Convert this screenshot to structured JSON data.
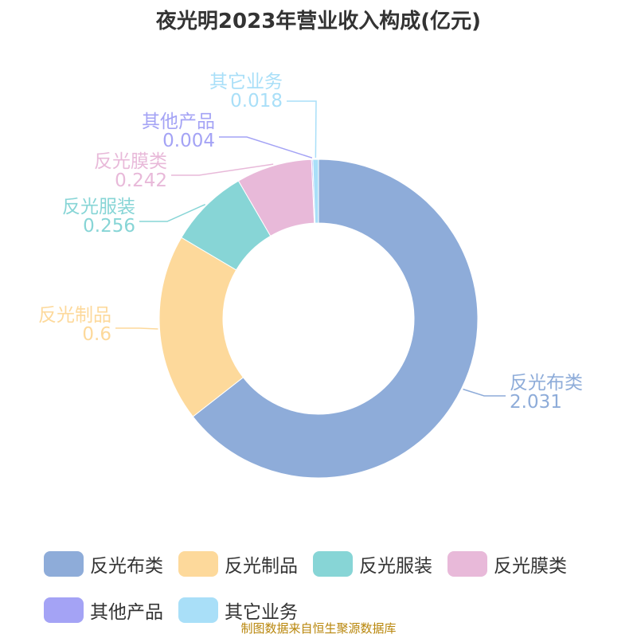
{
  "chart_data": {
    "type": "pie",
    "title": "夜光明2023年营业收入构成(亿元)",
    "slices": [
      {
        "name": "反光布类",
        "value": 2.031,
        "value_label": "2.031",
        "color": "#8eacd9"
      },
      {
        "name": "反光制品",
        "value": 0.6,
        "value_label": "0.6",
        "color": "#fdd99b"
      },
      {
        "name": "反光服装",
        "value": 0.256,
        "value_label": "0.256",
        "color": "#87d5d6"
      },
      {
        "name": "反光膜类",
        "value": 0.242,
        "value_label": "0.242",
        "color": "#e8b9d9"
      },
      {
        "name": "其他产品",
        "value": 0.004,
        "value_label": "0.004",
        "color": "#a4a3f5"
      },
      {
        "name": "其它业务",
        "value": 0.018,
        "value_label": "0.018",
        "color": "#a9dff8"
      }
    ],
    "donut": true,
    "legend_position": "bottom"
  },
  "source": "制图数据来自恒生聚源数据库"
}
